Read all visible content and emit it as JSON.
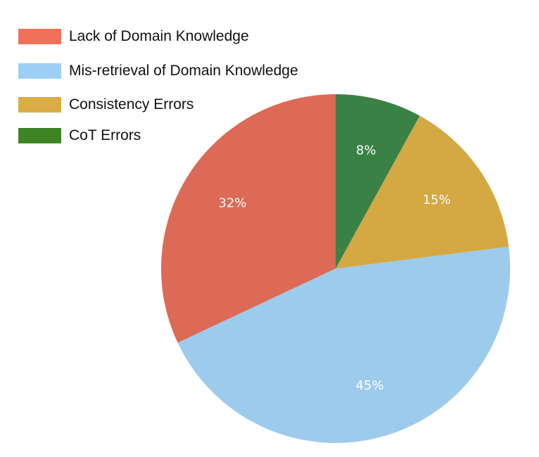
{
  "chart_data": {
    "type": "pie",
    "categories": [
      "Lack of Domain Knowledge",
      "Mis-retrieval of Domain Knowledge",
      "Consistency Errors",
      "CoT Errors"
    ],
    "values": [
      32,
      45,
      15,
      8
    ],
    "labels": [
      "32%",
      "45%",
      "15%",
      "8%"
    ],
    "colors": [
      "#dd6a56",
      "#9dcbec",
      "#d4a843",
      "#3a8145"
    ],
    "legend_colors": [
      "#ef7258",
      "#9ecff5",
      "#d9ac45",
      "#3e8426"
    ],
    "start": "top",
    "direction": "counterclockwise",
    "legend": "top-left"
  }
}
